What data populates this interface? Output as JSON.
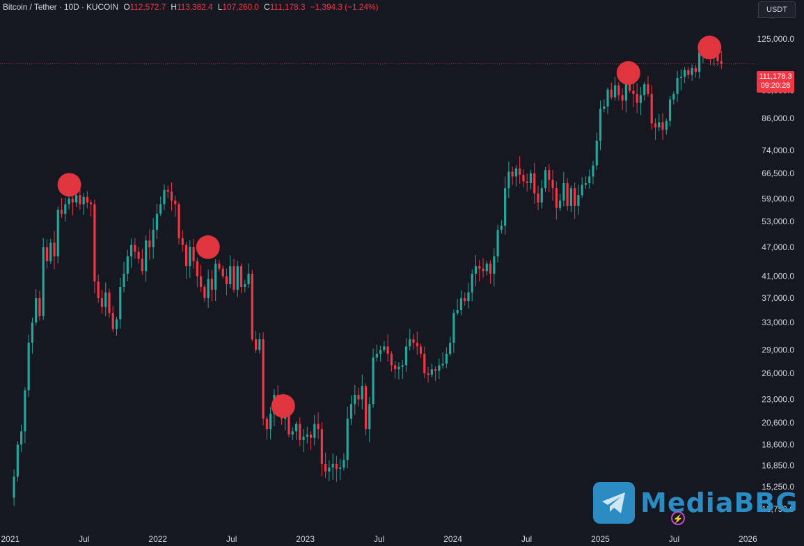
{
  "header": {
    "symbol": "Bitcoin / Tether · 10D · KUCOIN",
    "open_label": "O",
    "open": "112,572.7",
    "high_label": "H",
    "high": "113,382.4",
    "low_label": "L",
    "low": "107,260.0",
    "close_label": "C",
    "close": "111,178.3",
    "change": "−1,394.3 (−1.24%)"
  },
  "currency": "USDT",
  "last_price": {
    "value": "111,178.3",
    "countdown": "09:20:28"
  },
  "watermark": {
    "text": "MediaBBG"
  },
  "colors": {
    "bg": "#151821",
    "up": "#26a69a",
    "down": "#f23645",
    "marker": "#e0343f",
    "text": "#d1d4dc",
    "watermark": "#2b8cc4"
  },
  "chart_data": {
    "type": "candlestick",
    "title": "Bitcoin / Tether · 10D · KUCOIN",
    "y_scale": "log",
    "y_range": [
      12500,
      150000
    ],
    "y_ticks": [
      140000,
      125000,
      98000,
      86000,
      74000,
      66500,
      59000,
      53000,
      47000,
      41000,
      37000,
      33000,
      29000,
      26000,
      23000,
      20600,
      18600,
      16850,
      15250,
      13750
    ],
    "y_tick_labels": [
      "140,000.0",
      "125,000.0",
      "98,000.0",
      "86,000.0",
      "74,000.0",
      "66,500.0",
      "59,000.0",
      "53,000.0",
      "47,000.0",
      "41,000.0",
      "37,000.0",
      "33,000.0",
      "29,000.0",
      "26,000.0",
      "23,000.0",
      "20,600.0",
      "18,600.0",
      "16,850.0",
      "15,250.0",
      "13,750.0"
    ],
    "x_range": [
      2020.93,
      2026.05
    ],
    "x_ticks": [
      2021.0,
      2021.5,
      2022.0,
      2022.5,
      2023.0,
      2023.5,
      2024.0,
      2024.5,
      2025.0,
      2025.5,
      2026.0
    ],
    "x_tick_labels": [
      "2021",
      "Jul",
      "2022",
      "Jul",
      "2023",
      "Jul",
      "2024",
      "Jul",
      "2025",
      "Jul",
      "2026"
    ],
    "last_price": 111178.3,
    "closes": [
      14500,
      16000,
      18600,
      19800,
      24000,
      30000,
      33000,
      37000,
      34000,
      47000,
      44000,
      48000,
      45000,
      56000,
      55000,
      57500,
      59000,
      58000,
      60000,
      57500,
      59500,
      58000,
      57500,
      40000,
      37000,
      35500,
      38000,
      34500,
      32000,
      33500,
      39000,
      41500,
      45000,
      47500,
      46000,
      44500,
      42000,
      48500,
      47000,
      51000,
      55000,
      57500,
      61500,
      61000,
      58500,
      57500,
      49000,
      47500,
      43000,
      47000,
      44000,
      41000,
      39000,
      37000,
      40500,
      38500,
      43500,
      42500,
      41000,
      39500,
      43000,
      38500,
      43000,
      39000,
      39500,
      41500,
      30500,
      29000,
      30500,
      21000,
      20000,
      21500,
      23500,
      22500,
      21000,
      23000,
      19500,
      19800,
      20500,
      19000,
      19300,
      19500,
      19200,
      20500,
      20000,
      17000,
      16400,
      16700,
      17000,
      16600,
      16700,
      17300,
      21000,
      22500,
      23500,
      23000,
      24500,
      20000,
      22500,
      28000,
      28500,
      29000,
      29500,
      28500,
      27000,
      26500,
      26800,
      27000,
      29500,
      30500,
      30000,
      29500,
      28500,
      26000,
      25800,
      26500,
      26300,
      27000,
      27200,
      28500,
      30000,
      34500,
      35000,
      37000,
      36500,
      38000,
      41500,
      43000,
      42500,
      42000,
      43500,
      41500,
      45000,
      51000,
      52000,
      62000,
      67000,
      65500,
      68000,
      66000,
      64000,
      63500,
      66500,
      60500,
      58000,
      62000,
      67500,
      64500,
      62000,
      56500,
      58500,
      63500,
      57000,
      62000,
      57000,
      60000,
      63000,
      63500,
      65500,
      69000,
      77500,
      90000,
      91000,
      98500,
      95000,
      100500,
      96000,
      93500,
      102500,
      98000,
      96500,
      92500,
      96000,
      101000,
      96500,
      84000,
      82500,
      84500,
      81500,
      85000,
      94000,
      96500,
      104000,
      104500,
      108000,
      105500,
      109000,
      107000,
      117500,
      119000,
      118000,
      115500,
      117000,
      112572.7,
      111178.3
    ],
    "annotations": [
      {
        "type": "marker",
        "x": 2021.4,
        "y": 63000
      },
      {
        "type": "marker",
        "x": 2022.34,
        "y": 47000
      },
      {
        "type": "marker",
        "x": 2022.85,
        "y": 22300
      },
      {
        "type": "marker",
        "x": 2025.19,
        "y": 106500
      },
      {
        "type": "marker",
        "x": 2025.74,
        "y": 120000
      }
    ]
  }
}
